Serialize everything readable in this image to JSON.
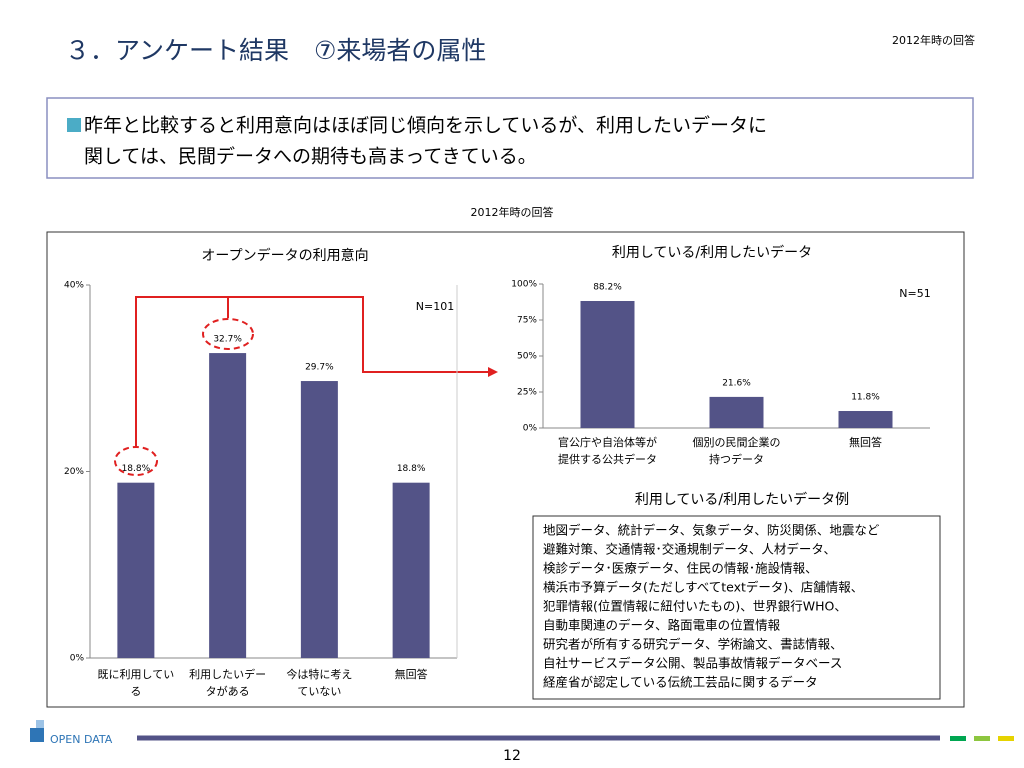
{
  "header": {
    "title": "３．アンケート結果　⑦来場者の属性",
    "date_note": "2012年時の回答"
  },
  "summary": [
    "昨年と比較すると利用意向はほぼ同じ傾向を示しているが、利用したいデータに",
    "関しては、民間データへの期待も高まってきている。"
  ],
  "caption": "2012年時の回答",
  "chart_data": [
    {
      "type": "bar",
      "title": "オープンデータの利用意向",
      "categories": [
        "既に利用している",
        "利用したいデータがある",
        "今は特に考えていない",
        "無回答"
      ],
      "values": [
        18.8,
        32.7,
        29.7,
        18.8
      ],
      "value_labels": [
        "18.8%",
        "32.7%",
        "29.7%",
        "18.8%"
      ],
      "ylim": [
        0,
        40
      ],
      "yticks": [
        {
          "value": 0,
          "label": "0%"
        },
        {
          "value": 20,
          "label": "20%"
        },
        {
          "value": 40,
          "label": "40%"
        }
      ],
      "color": "#535387",
      "annotation": "N=101"
    },
    {
      "type": "bar",
      "title": "利用している/利用したいデータ",
      "categories": [
        "官公庁や自治体等が提供する公共データ",
        "個別の民間企業の持つデータ",
        "無回答"
      ],
      "values": [
        88.2,
        21.6,
        11.8
      ],
      "value_labels": [
        "88.2%",
        "21.6%",
        "11.8%"
      ],
      "ylim": [
        0,
        100
      ],
      "yticks": [
        {
          "value": 0,
          "label": "0%"
        },
        {
          "value": 25,
          "label": "25%"
        },
        {
          "value": 50,
          "label": "50%"
        },
        {
          "value": 75,
          "label": "75%"
        },
        {
          "value": 100,
          "label": "100%"
        }
      ],
      "color": "#535387",
      "annotation": "N=51"
    }
  ],
  "examples": {
    "title": "利用している/利用したいデータ例",
    "lines": [
      "地図データ、統計データ、気象データ、防災関係、地震など",
      "避難対策、交通情報･交通規制データ、人材データ、",
      "検診データ･医療データ、住民の情報･施設情報、",
      "横浜市予算データ(ただしすべてtextデータ)、店舗情報、",
      "犯罪情報(位置情報に紐付いたもの)、世界銀行WHO、",
      "自動車関連のデータ、路面電車の位置情報",
      "研究者が所有する研究データ、学術論文、書誌情報、",
      "自社サービスデータ公開、製品事故情報データベース",
      "経産省が認定している伝統工芸品に関するデータ"
    ]
  },
  "footer": {
    "logo": "OPEN DATA",
    "page": "12"
  }
}
